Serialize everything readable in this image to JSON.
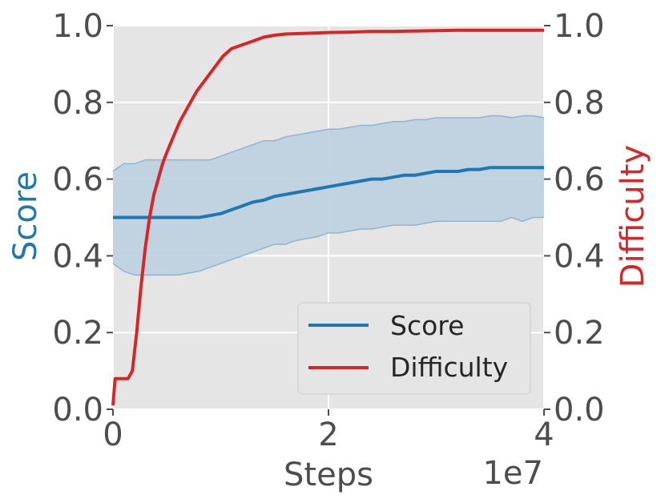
{
  "chart_data": {
    "type": "line",
    "xlabel": "Steps",
    "x_offset_label": "1e7",
    "y1label": "Score",
    "y2label": "Difficulty",
    "xlim": [
      0,
      40000000
    ],
    "ylim": [
      0,
      1.0
    ],
    "y2lim": [
      0,
      1.0
    ],
    "x_ticks": [
      0,
      20000000,
      40000000
    ],
    "x_tick_labels": [
      "0",
      "2",
      "4"
    ],
    "y_ticks": [
      0.0,
      0.2,
      0.4,
      0.6,
      0.8,
      1.0
    ],
    "y_tick_labels": [
      "0.0",
      "0.2",
      "0.4",
      "0.6",
      "0.8",
      "1.0"
    ],
    "grid": true,
    "legend_position": "lower-right",
    "colors": {
      "score": "#1f77b4",
      "difficulty": "#d62728",
      "band": "#bcd0e0",
      "axes_bg": "#e5e5e5",
      "grid": "#ffffff",
      "tick_text": "#4d4d4d"
    },
    "series": [
      {
        "name": "Score",
        "axis": "left",
        "x": [
          0,
          1000000,
          2000000,
          3000000,
          4000000,
          5000000,
          6000000,
          7000000,
          8000000,
          9000000,
          10000000,
          11000000,
          12000000,
          13000000,
          14000000,
          15000000,
          16000000,
          17000000,
          18000000,
          19000000,
          20000000,
          21000000,
          22000000,
          23000000,
          24000000,
          25000000,
          26000000,
          27000000,
          28000000,
          29000000,
          30000000,
          31000000,
          32000000,
          33000000,
          34000000,
          35000000,
          36000000,
          37000000,
          38000000,
          39000000,
          40000000
        ],
        "values": [
          0.5,
          0.5,
          0.5,
          0.5,
          0.5,
          0.5,
          0.5,
          0.5,
          0.5,
          0.505,
          0.51,
          0.52,
          0.53,
          0.54,
          0.545,
          0.555,
          0.56,
          0.565,
          0.57,
          0.575,
          0.58,
          0.585,
          0.59,
          0.595,
          0.6,
          0.6,
          0.605,
          0.61,
          0.61,
          0.615,
          0.62,
          0.62,
          0.62,
          0.625,
          0.625,
          0.63,
          0.63,
          0.63,
          0.63,
          0.63,
          0.63
        ],
        "upper": [
          0.62,
          0.64,
          0.64,
          0.65,
          0.65,
          0.65,
          0.65,
          0.65,
          0.65,
          0.65,
          0.66,
          0.67,
          0.68,
          0.69,
          0.7,
          0.7,
          0.71,
          0.715,
          0.72,
          0.725,
          0.73,
          0.73,
          0.735,
          0.74,
          0.74,
          0.745,
          0.75,
          0.75,
          0.755,
          0.755,
          0.76,
          0.76,
          0.76,
          0.76,
          0.76,
          0.765,
          0.765,
          0.76,
          0.765,
          0.765,
          0.76
        ],
        "lower": [
          0.38,
          0.36,
          0.35,
          0.35,
          0.35,
          0.35,
          0.35,
          0.355,
          0.36,
          0.37,
          0.38,
          0.39,
          0.4,
          0.41,
          0.42,
          0.43,
          0.43,
          0.44,
          0.445,
          0.45,
          0.46,
          0.46,
          0.465,
          0.47,
          0.47,
          0.475,
          0.48,
          0.48,
          0.48,
          0.485,
          0.49,
          0.49,
          0.49,
          0.49,
          0.49,
          0.49,
          0.49,
          0.5,
          0.49,
          0.5,
          0.5
        ]
      },
      {
        "name": "Difficulty",
        "axis": "right",
        "x": [
          0,
          200000,
          600000,
          1000000,
          1400000,
          1800000,
          2200000,
          2600000,
          3000000,
          3400000,
          3800000,
          4200000,
          4600000,
          5000000,
          5600000,
          6200000,
          7000000,
          7800000,
          8600000,
          9400000,
          10200000,
          11000000,
          12000000,
          13000000,
          14000000,
          15000000,
          16000000,
          18000000,
          20000000,
          22000000,
          24000000,
          26000000,
          28000000,
          30000000,
          32000000,
          34000000,
          36000000,
          38000000,
          40000000
        ],
        "values": [
          0.01,
          0.08,
          0.08,
          0.08,
          0.08,
          0.1,
          0.2,
          0.32,
          0.42,
          0.5,
          0.56,
          0.6,
          0.64,
          0.67,
          0.71,
          0.75,
          0.79,
          0.83,
          0.86,
          0.89,
          0.92,
          0.94,
          0.95,
          0.96,
          0.97,
          0.975,
          0.978,
          0.98,
          0.982,
          0.983,
          0.985,
          0.985,
          0.986,
          0.987,
          0.988,
          0.988,
          0.988,
          0.988,
          0.988
        ]
      }
    ]
  }
}
